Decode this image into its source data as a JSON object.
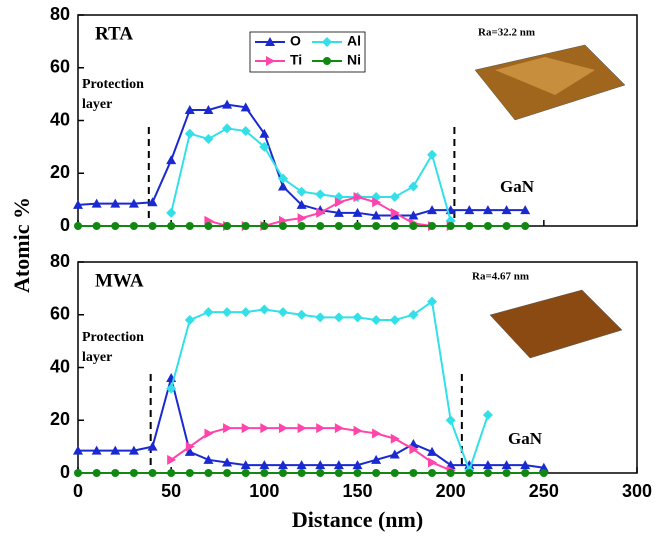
{
  "y_label": "Atomic %",
  "chart_data": [
    {
      "type": "line",
      "title": "RTA",
      "annotations": [
        "Protection",
        "layer",
        "GaN",
        "Ra=32.2 nm"
      ],
      "x": [
        0,
        10,
        20,
        30,
        40,
        50,
        60,
        70,
        80,
        90,
        100,
        110,
        120,
        130,
        140,
        150,
        160,
        170,
        180,
        190,
        200,
        210,
        220,
        230,
        240
      ],
      "series": [
        {
          "name": "O",
          "color": "#1a2ad0",
          "marker": "triangle-up",
          "values": [
            8,
            8.5,
            8.5,
            8.5,
            9,
            25,
            44,
            44,
            46,
            45,
            35,
            15,
            8,
            6,
            5,
            5,
            4,
            4,
            4,
            6,
            6,
            6,
            6,
            6,
            6
          ]
        },
        {
          "name": "Al",
          "color": "#33e0e8",
          "marker": "diamond",
          "values": [
            null,
            null,
            null,
            null,
            null,
            5,
            35,
            33,
            37,
            36,
            30,
            18,
            13,
            12,
            11,
            11,
            11,
            11,
            15,
            27,
            2,
            null,
            null,
            null,
            null
          ]
        },
        {
          "name": "Ti",
          "color": "#ff44aa",
          "marker": "triangle-right",
          "values": [
            null,
            null,
            null,
            null,
            null,
            null,
            null,
            2,
            0,
            0,
            0,
            2,
            3,
            5,
            9,
            11,
            9,
            5,
            1,
            0,
            0,
            null,
            null,
            null,
            null
          ]
        },
        {
          "name": "Ni",
          "color": "#118811",
          "marker": "circle",
          "values": [
            0,
            0,
            0,
            0,
            0,
            0,
            0,
            0,
            0,
            0,
            0,
            0,
            0,
            0,
            0,
            0,
            0,
            0,
            0,
            0,
            0,
            0,
            0,
            0,
            0
          ]
        }
      ],
      "vlines": [
        38,
        202
      ],
      "xlim": [
        0,
        300
      ],
      "xticks": [
        0,
        50,
        100,
        150,
        200,
        250,
        300
      ],
      "ylim": [
        0,
        80
      ],
      "yticks": [
        0,
        20,
        40,
        60,
        80
      ],
      "legend": true
    },
    {
      "type": "line",
      "title": "MWA",
      "x_label": "Distance (nm)",
      "annotations": [
        "Protection",
        "layer",
        "GaN",
        "Ra=4.67 nm"
      ],
      "x": [
        0,
        10,
        20,
        30,
        40,
        50,
        60,
        70,
        80,
        90,
        100,
        110,
        120,
        130,
        140,
        150,
        160,
        170,
        180,
        190,
        200,
        210,
        220,
        230,
        240,
        250
      ],
      "series": [
        {
          "color": "#1a2ad0",
          "marker": "triangle-up",
          "values": [
            8.5,
            8.5,
            8.5,
            8.5,
            10,
            36,
            8,
            5,
            4,
            3,
            3,
            3,
            3,
            3,
            3,
            3,
            5,
            7,
            11,
            8,
            3,
            3,
            3,
            3,
            3,
            2
          ]
        },
        {
          "color": "#33e0e8",
          "marker": "diamond",
          "values": [
            null,
            null,
            null,
            null,
            null,
            32,
            58,
            61,
            61,
            61,
            62,
            61,
            60,
            59,
            59,
            59,
            58,
            58,
            60,
            65,
            20,
            1,
            22,
            null,
            null,
            null
          ]
        },
        {
          "color": "#ff44aa",
          "marker": "triangle-right",
          "values": [
            null,
            null,
            null,
            null,
            null,
            5,
            10,
            15,
            17,
            17,
            17,
            17,
            17,
            17,
            17,
            16,
            15,
            13,
            9,
            4,
            1,
            null,
            null,
            null,
            null,
            null
          ]
        },
        {
          "color": "#118811",
          "marker": "circle",
          "values": [
            0,
            0,
            0,
            0,
            0,
            0,
            0,
            0,
            0,
            0,
            0,
            0,
            0,
            0,
            0,
            0,
            0,
            0,
            0,
            0,
            0,
            0,
            0,
            0,
            0,
            0
          ]
        }
      ],
      "vlines": [
        39,
        206
      ],
      "xlim": [
        0,
        300
      ],
      "xticks": [
        0,
        50,
        100,
        150,
        200,
        250,
        300
      ],
      "ylim": [
        0,
        80
      ],
      "yticks": [
        0,
        20,
        40,
        60,
        80
      ]
    }
  ]
}
